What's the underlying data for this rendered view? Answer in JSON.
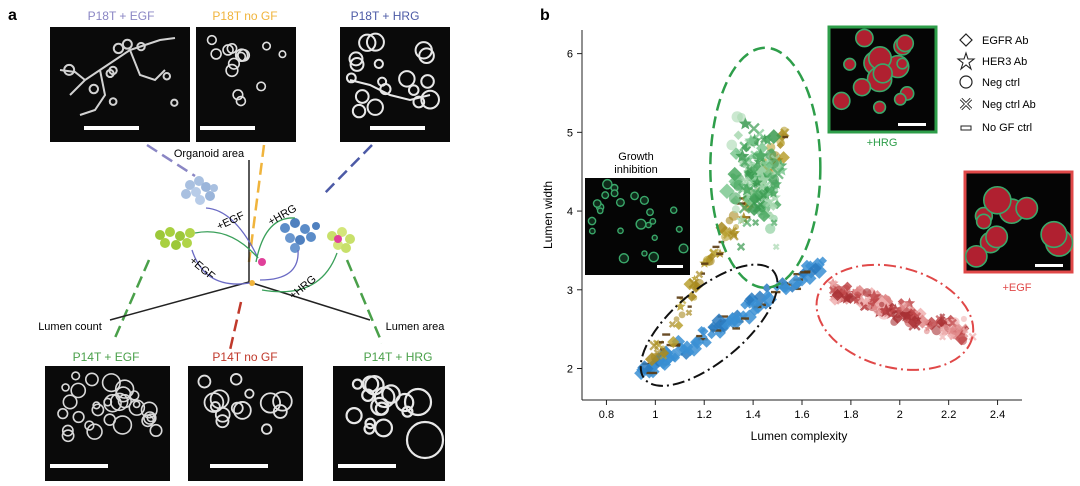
{
  "panel_a": {
    "label": "a",
    "top_images": [
      {
        "label": "P18T + EGF",
        "color": "#8a86c4"
      },
      {
        "label": "P18T no GF",
        "color": "#f0b43c"
      },
      {
        "label": "P18T + HRG",
        "color": "#4c5aa6"
      }
    ],
    "bottom_images": [
      {
        "label": "P14T + EGF",
        "color": "#4aa04a"
      },
      {
        "label": "P14T no GF",
        "color": "#c0392b"
      },
      {
        "label": "P14T + HRG",
        "color": "#4aa04a"
      }
    ],
    "axes": {
      "organoid_area": "Organoid area",
      "lumen_count": "Lumen count",
      "lumen_area": "Lumen area"
    },
    "arrows": {
      "egf_top": "+EGF",
      "hrg_top": "+HRG",
      "egf_bottom": "+EGF",
      "hrg_bottom": "+HRG"
    }
  },
  "panel_b": {
    "label": "b",
    "growth_inhibition": "Growth\ninhibition",
    "inset_hrg": "+HRG",
    "inset_egf": "+EGF",
    "hrg_color": "#2e9e4a",
    "egf_color": "#e04848",
    "legend": [
      {
        "label": "EGFR Ab",
        "icon": "diamond-icon"
      },
      {
        "label": "HER3 Ab",
        "icon": "star-icon"
      },
      {
        "label": "Neg ctrl",
        "icon": "circle-icon"
      },
      {
        "label": "Neg ctrl Ab",
        "icon": "cross-icon"
      },
      {
        "label": "No GF ctrl",
        "icon": "dash-icon"
      }
    ]
  },
  "chart_data": {
    "type": "scatter",
    "title": "",
    "xlabel": "Lumen complexity",
    "ylabel": "Lumen width",
    "xlim": [
      0.7,
      2.5
    ],
    "ylim": [
      1.6,
      6.3
    ],
    "xticks": [
      "0.8",
      "1",
      "1.2",
      "1.4",
      "1.6",
      "1.8",
      "2",
      "2.2",
      "2.4"
    ],
    "yticks": [
      "2",
      "3",
      "4",
      "5",
      "6"
    ],
    "grid": false,
    "legend_position": "top-right",
    "clusters": [
      {
        "name": "No GF",
        "color": "#3a8fd4",
        "center": [
          1.2,
          2.6
        ],
        "ellipse_x": [
          0.9,
          1.55
        ],
        "ellipse_y": [
          1.7,
          3.3
        ]
      },
      {
        "name": "+HRG",
        "color": "#4aa860",
        "center": [
          1.4,
          4.4
        ],
        "ellipse_x": [
          1.2,
          1.72
        ],
        "ellipse_y": [
          3.4,
          6.0
        ]
      },
      {
        "name": "+EGF",
        "color": "#c0484a",
        "center": [
          2.0,
          2.6
        ],
        "ellipse_x": [
          1.7,
          2.3
        ],
        "ellipse_y": [
          2.0,
          3.3
        ]
      }
    ]
  }
}
